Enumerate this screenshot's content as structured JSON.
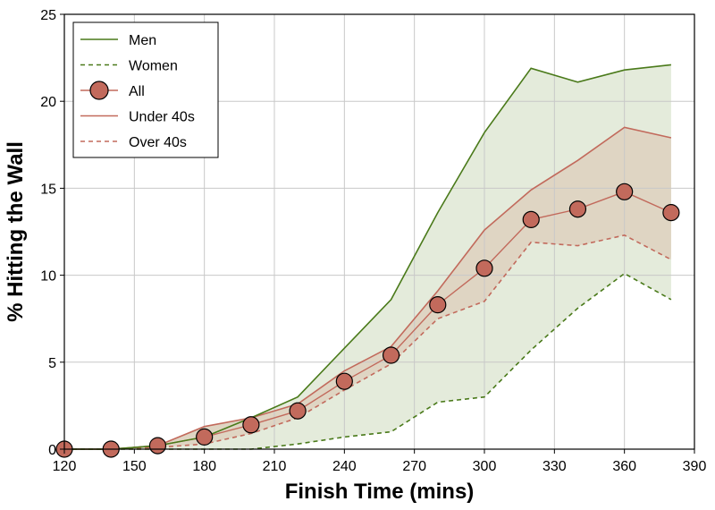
{
  "chart_data": {
    "type": "line",
    "xlabel": "Finish Time (mins)",
    "ylabel": "% Hitting the Wall",
    "xlim": [
      120,
      390
    ],
    "ylim": [
      0,
      25
    ],
    "xticks": [
      120,
      150,
      180,
      210,
      240,
      270,
      300,
      330,
      360,
      390
    ],
    "yticks": [
      0,
      5,
      10,
      15,
      20,
      25
    ],
    "grid": true,
    "legend_position": "top-left",
    "x": [
      120,
      140,
      160,
      180,
      200,
      220,
      240,
      260,
      280,
      300,
      320,
      340,
      360,
      380
    ],
    "series": [
      {
        "name": "Men",
        "style": "solid",
        "color": "#4a7a1a",
        "values": [
          0,
          0,
          0.2,
          0.7,
          1.8,
          3.0,
          5.8,
          8.6,
          13.6,
          18.2,
          21.9,
          21.1,
          21.8,
          22.1
        ]
      },
      {
        "name": "Women",
        "style": "dashed",
        "color": "#4a7a1a",
        "values": [
          0,
          0,
          0,
          0,
          0,
          0.3,
          0.7,
          1.0,
          2.7,
          3.0,
          5.7,
          8.1,
          10.1,
          8.6
        ]
      },
      {
        "name": "All",
        "style": "markers",
        "color": "#c26a5c",
        "values": [
          0,
          0,
          0.2,
          0.7,
          1.4,
          2.2,
          3.9,
          5.4,
          8.3,
          10.4,
          13.2,
          13.8,
          14.8,
          13.6
        ]
      },
      {
        "name": "Under 40s",
        "style": "solid",
        "color": "#c26a5c",
        "values": [
          0,
          0,
          0.2,
          1.3,
          1.8,
          2.6,
          4.5,
          5.9,
          9.1,
          12.6,
          14.9,
          16.6,
          18.5,
          17.9
        ]
      },
      {
        "name": "Over 40s",
        "style": "dashed",
        "color": "#c26a5c",
        "values": [
          0,
          0,
          0.1,
          0.3,
          0.9,
          1.8,
          3.4,
          4.9,
          7.5,
          8.5,
          11.9,
          11.7,
          12.3,
          10.9
        ]
      }
    ],
    "fill_colors": {
      "gender_band": "#e4ebdb",
      "age_band": "#dfd5c3"
    }
  }
}
